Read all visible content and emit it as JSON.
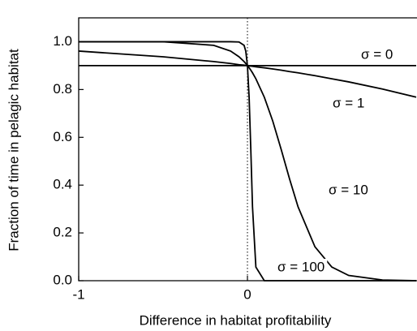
{
  "chart_data": {
    "type": "line",
    "xlabel": "Difference in habitat profitability",
    "ylabel": "Fraction of time in pelagic habitat",
    "x": [
      -1,
      -0.5,
      -0.2,
      -0.1,
      -0.05,
      -0.02,
      -0.01,
      0,
      0.01,
      0.02,
      0.03,
      0.05,
      0.1,
      0.15,
      0.2,
      0.25,
      0.3,
      0.4,
      0.5,
      0.6,
      0.8,
      1
    ],
    "series": [
      {
        "name": "σ = 0",
        "color": "#000000",
        "values": [
          0.9,
          0.9,
          0.9,
          0.9,
          0.9,
          0.9,
          0.9,
          0.9,
          0.9,
          0.9,
          0.9,
          0.9,
          0.9,
          0.9,
          0.9,
          0.9,
          0.9,
          0.9,
          0.9,
          0.9,
          0.9,
          0.9
        ]
      },
      {
        "name": "σ = 1",
        "color": "#000000",
        "values": [
          0.961,
          0.937,
          0.917,
          0.909,
          0.904,
          0.902,
          0.901,
          0.9,
          0.899,
          0.898,
          0.897,
          0.895,
          0.891,
          0.886,
          0.881,
          0.875,
          0.87,
          0.858,
          0.845,
          0.832,
          0.802,
          0.768
        ]
      },
      {
        "name": "σ = 10",
        "color": "#000000",
        "values": [
          1,
          1,
          0.985,
          0.961,
          0.937,
          0.917,
          0.909,
          0.9,
          0.891,
          0.881,
          0.87,
          0.845,
          0.768,
          0.668,
          0.549,
          0.425,
          0.309,
          0.142,
          0.057,
          0.022,
          0.003,
          0
        ]
      },
      {
        "name": "σ = 100",
        "color": "#000000",
        "values": [
          1,
          1,
          1,
          1,
          0.999,
          0.985,
          0.961,
          0.9,
          0.768,
          0.549,
          0.309,
          0.057,
          0,
          0,
          0,
          0,
          0,
          0,
          0,
          0,
          0,
          0
        ]
      }
    ],
    "xlim": [
      -1,
      1
    ],
    "xticks": [
      -1,
      0
    ],
    "ylim": [
      0,
      1.1
    ],
    "yticks": [
      {
        "value": 0,
        "label": "0.0"
      },
      {
        "value": 0.2,
        "label": "0.2"
      },
      {
        "value": 0.4,
        "label": "0.4"
      },
      {
        "value": 0.6,
        "label": "0.6"
      },
      {
        "value": 0.8,
        "label": "0.8"
      },
      {
        "value": 1,
        "label": "1.0"
      }
    ],
    "vline": 0
  }
}
